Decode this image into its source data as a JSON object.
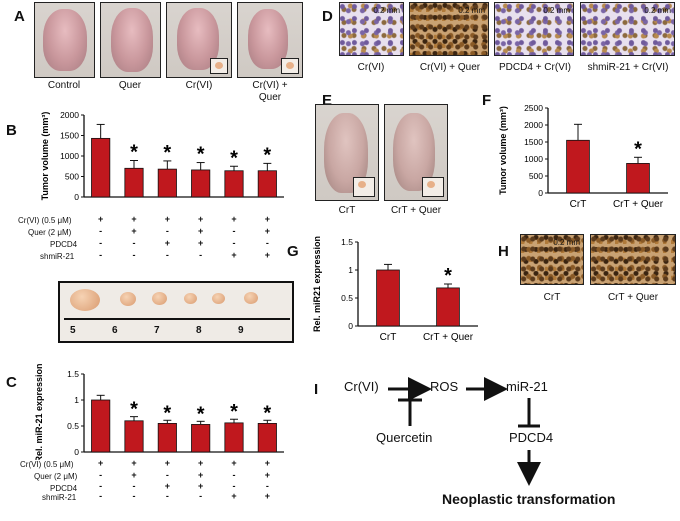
{
  "panels": {
    "A": {
      "letter": "A",
      "labels": [
        "Control",
        "Quer",
        "Cr(VI)",
        "Cr(VI) +\nQuer"
      ]
    },
    "B": {
      "letter": "B"
    },
    "C": {
      "letter": "C"
    },
    "D": {
      "letter": "D",
      "labels": [
        "Cr(VI)",
        "Cr(VI) + Quer",
        "PDCD4 + Cr(VI)",
        "shmiR-21 + Cr(VI)"
      ],
      "scale": "0.2 mm"
    },
    "E": {
      "letter": "E",
      "labels": [
        "CrT",
        "CrT + Quer"
      ]
    },
    "F": {
      "letter": "F"
    },
    "G": {
      "letter": "G"
    },
    "H": {
      "letter": "H",
      "labels": [
        "CrT",
        "CrT + Quer"
      ],
      "scale": "0.2 mm"
    },
    "I": {
      "letter": "I"
    }
  },
  "treatment_table": {
    "row_labels": [
      "Cr(VI) (0.5 μM)",
      "Quer (2 μM)",
      "PDCD4",
      "shmiR-21"
    ],
    "rows": [
      [
        "+",
        "+",
        "+",
        "+",
        "+",
        "+"
      ],
      [
        "-",
        "+",
        "-",
        "+",
        "-",
        "+"
      ],
      [
        "-",
        "-",
        "+",
        "+",
        "-",
        "-"
      ],
      [
        "-",
        "-",
        "-",
        "-",
        "+",
        "+"
      ]
    ]
  },
  "ruler": {
    "numbers": [
      "5",
      "6",
      "7",
      "8",
      "9"
    ]
  },
  "pathway": {
    "cr": "Cr(VI)",
    "ros": "ROS",
    "mir": "miR-21",
    "quer": "Quercetin",
    "pdcd4": "PDCD4",
    "outcome": "Neoplastic transformation"
  },
  "chart_data": [
    {
      "panel": "B",
      "type": "bar",
      "ylabel": "Tumor volume (mm³)",
      "ylim": [
        0,
        2000
      ],
      "yticks": [
        0,
        500,
        1000,
        1500,
        2000
      ],
      "values": [
        1430,
        700,
        680,
        660,
        640,
        640
      ],
      "errors": [
        340,
        190,
        200,
        180,
        110,
        180
      ],
      "significant": [
        false,
        true,
        true,
        true,
        true,
        true
      ],
      "sig_mark": "*"
    },
    {
      "panel": "C",
      "type": "bar",
      "ylabel": "Rel. miR-21 expression",
      "ylim": [
        0,
        1.5
      ],
      "yticks": [
        "0",
        "0.5",
        "1",
        "1.5"
      ],
      "values": [
        1.0,
        0.6,
        0.55,
        0.53,
        0.56,
        0.55
      ],
      "errors": [
        0.09,
        0.08,
        0.06,
        0.06,
        0.07,
        0.06
      ],
      "significant": [
        false,
        true,
        true,
        true,
        true,
        true
      ],
      "sig_mark": "*"
    },
    {
      "panel": "F",
      "type": "bar",
      "categories": [
        "CrT",
        "CrT + Quer"
      ],
      "ylabel": "Tumor volume (mm³)",
      "ylim": [
        0,
        2500
      ],
      "yticks": [
        0,
        500,
        1000,
        1500,
        2000,
        2500
      ],
      "values": [
        1550,
        870
      ],
      "errors": [
        470,
        180
      ],
      "significant": [
        false,
        true
      ],
      "sig_mark": "*"
    },
    {
      "panel": "G",
      "type": "bar",
      "categories": [
        "CrT",
        "CrT + Quer"
      ],
      "ylabel": "Rel. miR21 expression",
      "ylim": [
        0,
        1.5
      ],
      "yticks": [
        "0",
        "0.5",
        "1",
        "1.5"
      ],
      "values": [
        1.0,
        0.68
      ],
      "errors": [
        0.1,
        0.07
      ],
      "significant": [
        false,
        true
      ],
      "sig_mark": "*"
    }
  ],
  "colors": {
    "bar": "#c0181e",
    "axis": "#111111"
  }
}
